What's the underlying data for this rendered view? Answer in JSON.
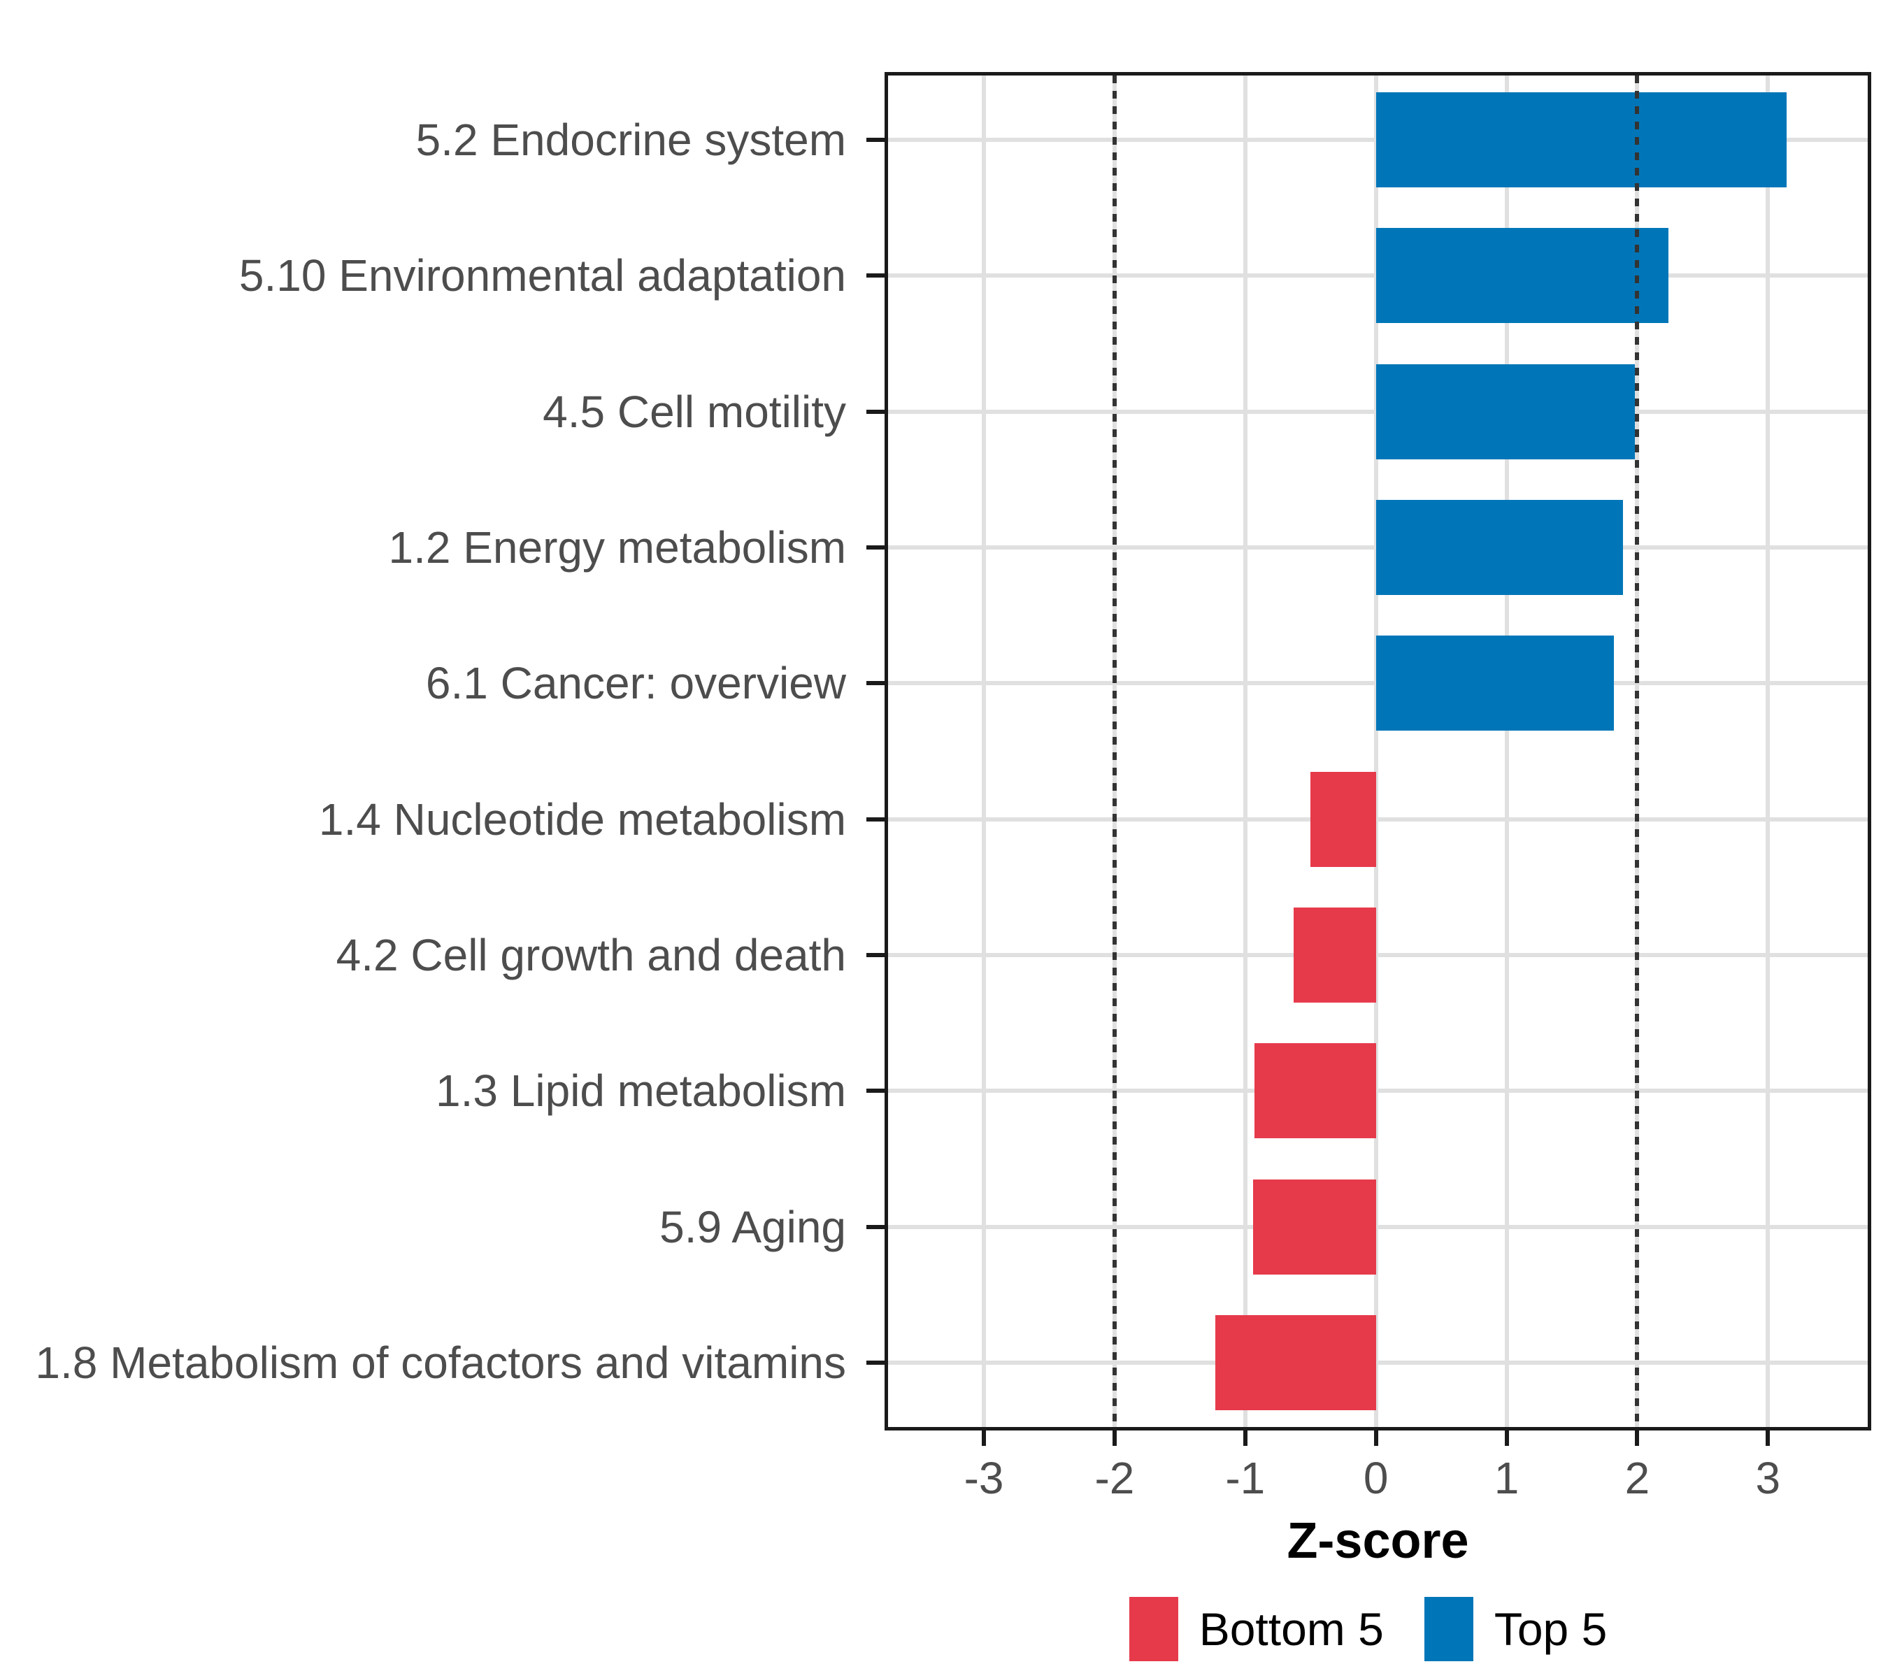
{
  "figure": {
    "background": "#ffffff"
  },
  "chart_data": {
    "type": "bar",
    "orientation": "horizontal",
    "title": "",
    "xlabel": "Z-score",
    "ylabel": "",
    "categories": [
      "5.2 Endocrine system",
      "5.10 Environmental adaptation",
      "4.5 Cell motility",
      "1.2 Energy metabolism",
      "6.1 Cancer: overview",
      "1.4 Nucleotide metabolism",
      "4.2 Cell growth and death",
      "1.3 Lipid metabolism",
      "5.9 Aging",
      "1.8 Metabolism of cofactors and vitamins"
    ],
    "values": [
      3.14,
      2.24,
      1.98,
      1.89,
      1.82,
      -0.5,
      -0.63,
      -0.93,
      -0.94,
      -1.23
    ],
    "group_by_sign": {
      "positive": "Top 5",
      "negative": "Bottom 5"
    },
    "xlim": [
      -3.76,
      3.79
    ],
    "xticks": [
      -3,
      -2,
      -1,
      0,
      1,
      2,
      3
    ],
    "reference_lines": [
      {
        "x": -2,
        "style": "dotted"
      },
      {
        "x": 2,
        "style": "dotted"
      }
    ],
    "grid": "major-only",
    "colors": {
      "top5_blue": "#0076b8",
      "bottom5_red": "#e63a4b",
      "gridline": "#e0e0e0",
      "axis_text": "#4d4d4d",
      "panel_border": "#1a1a1a",
      "reference_line": "#333333"
    },
    "legend": {
      "position": "bottom-center",
      "entries": [
        {
          "label": "Bottom 5",
          "color": "#e63a4b"
        },
        {
          "label": "Top 5",
          "color": "#0076b8"
        }
      ]
    }
  }
}
